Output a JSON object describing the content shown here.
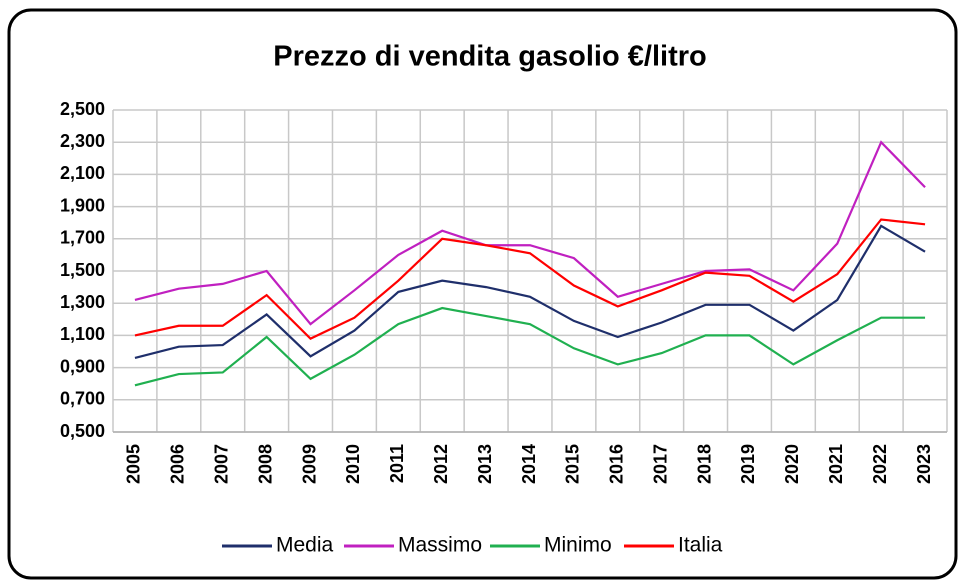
{
  "chart_data": {
    "type": "line",
    "title": "Prezzo di vendita gasolio €/litro",
    "categories": [
      "2005",
      "2006",
      "2007",
      "2008",
      "2009",
      "2010",
      "2011",
      "2012",
      "2013",
      "2014",
      "2015",
      "2016",
      "2017",
      "2018",
      "2019",
      "2020",
      "2021",
      "2022",
      "2023"
    ],
    "series": [
      {
        "name": "Media",
        "color": "#1f2f6b",
        "values": [
          0.96,
          1.03,
          1.04,
          1.23,
          0.97,
          1.13,
          1.37,
          1.44,
          1.4,
          1.34,
          1.19,
          1.09,
          1.18,
          1.29,
          1.29,
          1.13,
          1.32,
          1.78,
          1.62
        ]
      },
      {
        "name": "Massimo",
        "color": "#c020c0",
        "values": [
          1.32,
          1.39,
          1.42,
          1.5,
          1.17,
          1.38,
          1.6,
          1.75,
          1.66,
          1.66,
          1.58,
          1.34,
          1.42,
          1.5,
          1.51,
          1.38,
          1.67,
          2.3,
          2.02
        ]
      },
      {
        "name": "Minimo",
        "color": "#20b050",
        "values": [
          0.79,
          0.86,
          0.87,
          1.09,
          0.83,
          0.98,
          1.17,
          1.27,
          1.22,
          1.17,
          1.02,
          0.92,
          0.99,
          1.1,
          1.1,
          0.92,
          1.07,
          1.21,
          1.21
        ]
      },
      {
        "name": "Italia",
        "color": "#ff0000",
        "values": [
          1.1,
          1.16,
          1.16,
          1.35,
          1.08,
          1.21,
          1.44,
          1.7,
          1.66,
          1.61,
          1.41,
          1.28,
          1.38,
          1.49,
          1.47,
          1.31,
          1.48,
          1.82,
          1.79
        ]
      }
    ],
    "ylim": [
      0.5,
      2.5
    ],
    "yticks": [
      {
        "value": 0.5,
        "label": "0,500"
      },
      {
        "value": 0.7,
        "label": "0,700"
      },
      {
        "value": 0.9,
        "label": "0,900"
      },
      {
        "value": 1.1,
        "label": "1,100"
      },
      {
        "value": 1.3,
        "label": "1,300"
      },
      {
        "value": 1.5,
        "label": "1,500"
      },
      {
        "value": 1.7,
        "label": "1,700"
      },
      {
        "value": 1.9,
        "label": "1,900"
      },
      {
        "value": 2.1,
        "label": "2,100"
      },
      {
        "value": 2.3,
        "label": "2,300"
      },
      {
        "value": 2.5,
        "label": "2,500"
      }
    ],
    "grid": true,
    "legend": "bottom"
  }
}
